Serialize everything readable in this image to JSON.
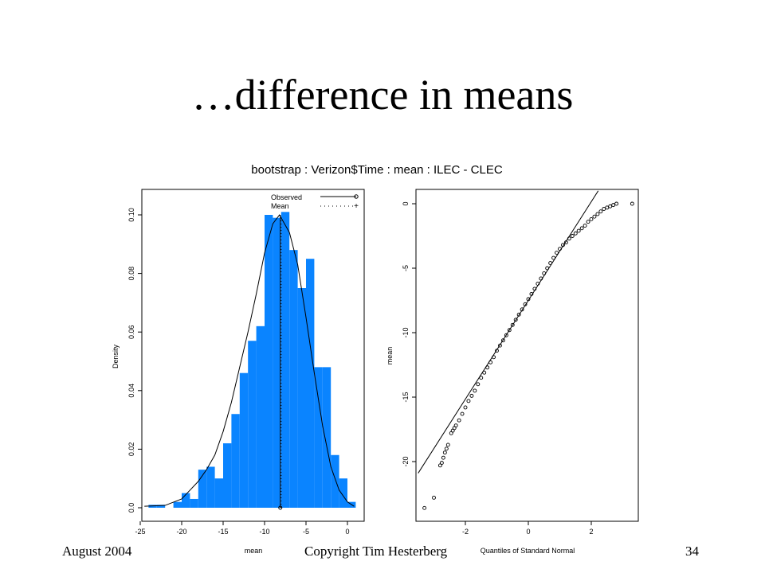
{
  "slide": {
    "title": "…difference in means",
    "footer_left": "August 2004",
    "footer_center": "Copyright Tim Hesterberg",
    "page_number": "34"
  },
  "chart_data": [
    {
      "type": "bar",
      "title": "bootstrap : Verizon$Time : mean : ILEC - CLEC",
      "xlabel": "mean",
      "ylabel": "Density",
      "xlim": [
        -25,
        1
      ],
      "ylim": [
        0,
        0.105
      ],
      "xticks": [
        -25,
        -20,
        -15,
        -10,
        -5,
        0
      ],
      "yticks": [
        0.0,
        0.02,
        0.04,
        0.06,
        0.08,
        0.1
      ],
      "ytick_labels": [
        "0.0",
        "0.02",
        "0.04",
        "0.06",
        "0.08",
        "0.10"
      ],
      "bin_edges": [
        -24,
        -23,
        -22,
        -21,
        -20,
        -19,
        -18,
        -17,
        -16,
        -15,
        -14,
        -13,
        -12,
        -11,
        -10,
        -9,
        -8,
        -7,
        -6,
        -5,
        -4,
        -3,
        -2,
        -1,
        0,
        1
      ],
      "densities": [
        0.001,
        0.001,
        0.0,
        0.002,
        0.005,
        0.003,
        0.013,
        0.014,
        0.01,
        0.022,
        0.032,
        0.046,
        0.057,
        0.062,
        0.1,
        0.099,
        0.101,
        0.088,
        0.075,
        0.085,
        0.048,
        0.048,
        0.018,
        0.01,
        0.002
      ],
      "bar_color": "#0a84ff",
      "density_curve": {
        "x": [
          -24.5,
          -22,
          -20,
          -19,
          -18,
          -17,
          -16,
          -15,
          -14,
          -13,
          -12,
          -11,
          -10,
          -9,
          -8.2,
          -7,
          -6,
          -5,
          -4,
          -3,
          -2,
          -1,
          0,
          0.8
        ],
        "y": [
          0.0005,
          0.0008,
          0.003,
          0.006,
          0.009,
          0.013,
          0.018,
          0.026,
          0.036,
          0.048,
          0.06,
          0.073,
          0.087,
          0.097,
          0.1,
          0.094,
          0.083,
          0.065,
          0.046,
          0.028,
          0.014,
          0.006,
          0.002,
          0.0005
        ]
      },
      "observed": -8.1,
      "mean": -8.0,
      "legend": {
        "position": "top-right",
        "entries": [
          "Observed",
          "Mean"
        ]
      }
    },
    {
      "type": "scatter",
      "xlabel": "Quantiles of Standard Normal",
      "ylabel": "mean",
      "xlim": [
        -3.5,
        3.6
      ],
      "ylim": [
        -24.5,
        1.5
      ],
      "xticks": [
        -2,
        0,
        2
      ],
      "yticks": [
        0,
        -5,
        -10,
        -15,
        -20
      ],
      "reference_line": {
        "x": [
          -3.5,
          2.22
        ],
        "y": [
          -20.9,
          1.0
        ]
      },
      "points": {
        "x": [
          -3.3,
          -3.0,
          -2.8,
          -2.75,
          -2.7,
          -2.65,
          -2.6,
          -2.55,
          -2.45,
          -2.4,
          -2.35,
          -2.3,
          -2.2,
          -2.1,
          -2.0,
          -1.9,
          -1.8,
          -1.7,
          -1.6,
          -1.5,
          -1.4,
          -1.3,
          -1.2,
          -1.1,
          -1.0,
          -0.9,
          -0.8,
          -0.7,
          -0.6,
          -0.5,
          -0.4,
          -0.3,
          -0.2,
          -0.1,
          0.0,
          0.1,
          0.2,
          0.3,
          0.4,
          0.5,
          0.6,
          0.7,
          0.8,
          0.9,
          1.0,
          1.1,
          1.2,
          1.3,
          1.4,
          1.5,
          1.6,
          1.7,
          1.8,
          1.9,
          2.0,
          2.1,
          2.2,
          2.3,
          2.4,
          2.5,
          2.6,
          2.7,
          2.8,
          3.3
        ],
        "y": [
          -23.6,
          -22.8,
          -20.3,
          -20.1,
          -19.7,
          -19.3,
          -19.0,
          -18.7,
          -17.8,
          -17.6,
          -17.4,
          -17.2,
          -16.8,
          -16.3,
          -15.8,
          -15.3,
          -14.9,
          -14.5,
          -14.0,
          -13.5,
          -13.1,
          -12.7,
          -12.3,
          -11.9,
          -11.4,
          -11.0,
          -10.6,
          -10.2,
          -9.8,
          -9.4,
          -9.0,
          -8.6,
          -8.2,
          -7.8,
          -7.4,
          -7.0,
          -6.6,
          -6.2,
          -5.8,
          -5.4,
          -5.0,
          -4.6,
          -4.2,
          -3.8,
          -3.5,
          -3.2,
          -3.0,
          -2.7,
          -2.5,
          -2.3,
          -2.1,
          -1.9,
          -1.7,
          -1.4,
          -1.2,
          -1.0,
          -0.8,
          -0.6,
          -0.4,
          -0.3,
          -0.2,
          -0.1,
          0.0,
          0.0
        ]
      }
    }
  ]
}
